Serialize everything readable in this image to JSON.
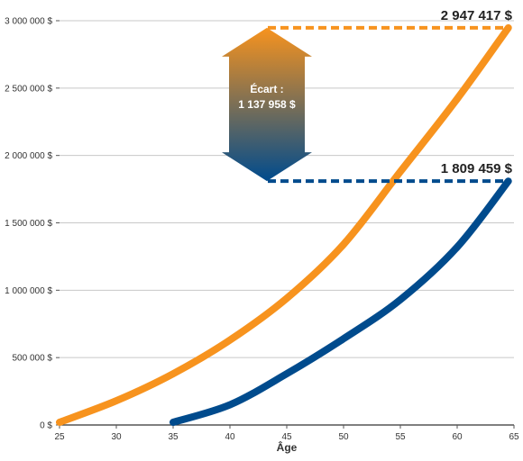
{
  "chart_data": {
    "type": "line",
    "title": "",
    "xlabel": "Âge",
    "ylabel": "",
    "xlim": [
      25,
      65
    ],
    "ylim": [
      0,
      3000000
    ],
    "x_ticks": [
      "25",
      "30",
      "35",
      "40",
      "45",
      "50",
      "55",
      "60",
      "65"
    ],
    "y_ticks": [
      "0 $",
      "500 000 $",
      "1 000 000 $",
      "1 500 000 $",
      "2 000 000 $",
      "2 500 000 $",
      "3 000 000 $"
    ],
    "grid": "horizontal",
    "legend": "none",
    "series": [
      {
        "color": "#f7931e",
        "x": [
          25,
          30,
          35,
          40,
          45,
          50,
          55,
          60,
          64.5
        ],
        "y": [
          20000,
          180000,
          380000,
          630000,
          940000,
          1340000,
          1880000,
          2420000,
          2947417
        ],
        "end_label": "2 947 417 $"
      },
      {
        "color": "#004b8d",
        "x": [
          35,
          40,
          45,
          50,
          55,
          60,
          64.5
        ],
        "y": [
          20000,
          150000,
          380000,
          640000,
          930000,
          1320000,
          1809459
        ],
        "end_label": "1 809 459 $"
      }
    ],
    "annotation": {
      "label_line1": "Écart :",
      "label_line2": "1 137 958 $",
      "from": 1809459,
      "to": 2947417
    }
  }
}
